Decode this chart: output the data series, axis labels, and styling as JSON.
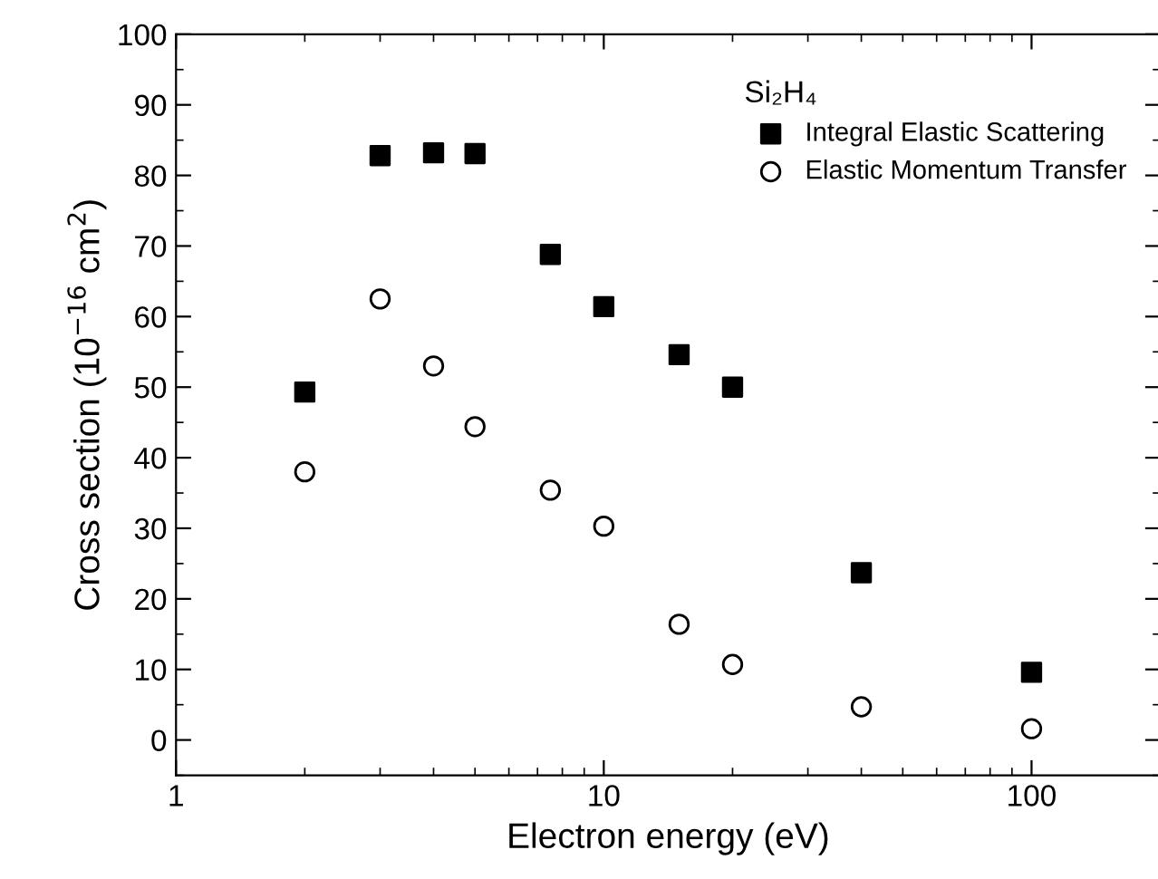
{
  "chart_data": {
    "type": "scatter",
    "xlabel": "Electron energy (eV)",
    "ylabel": "Cross section (10$^{−16}$ cm$^{2}$)",
    "legend_title": "Si₂H₄",
    "x": [
      2,
      3,
      4,
      5,
      7.5,
      10,
      15,
      20,
      40,
      100
    ],
    "series": [
      {
        "name": "Integral Elastic Scattering",
        "color": "#000000",
        "marker": "square",
        "values": [
          49.3,
          82.8,
          83.2,
          83.1,
          68.8,
          61.4,
          54.6,
          50.0,
          23.7,
          9.6
        ]
      },
      {
        "name": "Elastic Momentum Transfer",
        "color": "#000000",
        "marker": "circle",
        "values": [
          38.0,
          62.5,
          53.0,
          44.4,
          35.4,
          30.3,
          16.4,
          10.7,
          4.7,
          1.6
        ]
      }
    ],
    "log": "x",
    "xlim": [
      1,
      200
    ],
    "xticks": [
      1,
      10,
      100
    ],
    "ylim": [
      -5,
      100
    ],
    "yticks": [
      0,
      10,
      20,
      30,
      40,
      50,
      60,
      70,
      80,
      90,
      100
    ],
    "grid": false,
    "legend": "top right"
  }
}
